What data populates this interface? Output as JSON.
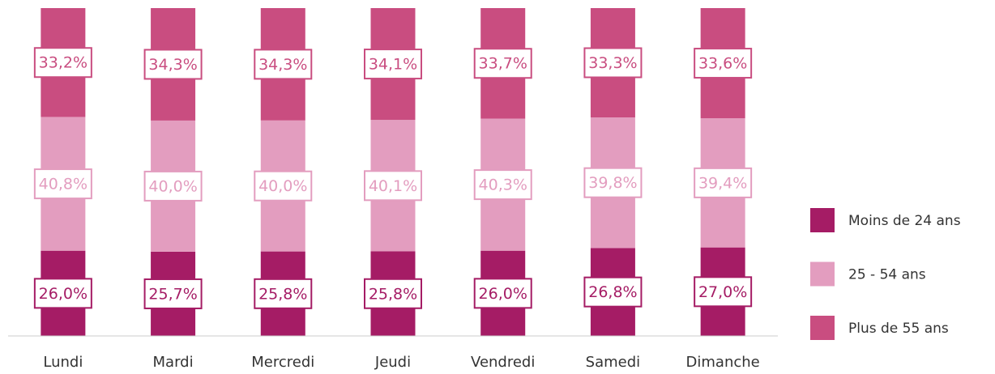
{
  "chart_data": {
    "type": "bar",
    "stacked": true,
    "categories": [
      "Lundi",
      "Mardi",
      "Mercredi",
      "Jeudi",
      "Vendredi",
      "Samedi",
      "Dimanche"
    ],
    "series": [
      {
        "name": "Moins de 24 ans",
        "color": "#a51c65",
        "values": [
          26.0,
          25.7,
          25.8,
          25.8,
          26.0,
          26.8,
          27.0
        ],
        "value_labels": [
          "26,0%",
          "25,7%",
          "25,8%",
          "25,8%",
          "26,0%",
          "26,8%",
          "27,0%"
        ]
      },
      {
        "name": "25 - 54 ans",
        "color": "#e39dbf",
        "values": [
          40.8,
          40.0,
          40.0,
          40.1,
          40.3,
          39.8,
          39.4
        ],
        "value_labels": [
          "40,8%",
          "40,0%",
          "40,0%",
          "40,1%",
          "40,3%",
          "39,8%",
          "39,4%"
        ]
      },
      {
        "name": "Plus de 55 ans",
        "color": "#c94d80",
        "values": [
          33.2,
          34.3,
          34.3,
          34.1,
          33.7,
          33.3,
          33.6
        ],
        "value_labels": [
          "33,2%",
          "34,3%",
          "34,3%",
          "34,1%",
          "33,7%",
          "33,3%",
          "33,6%"
        ]
      }
    ],
    "legend": "right"
  }
}
